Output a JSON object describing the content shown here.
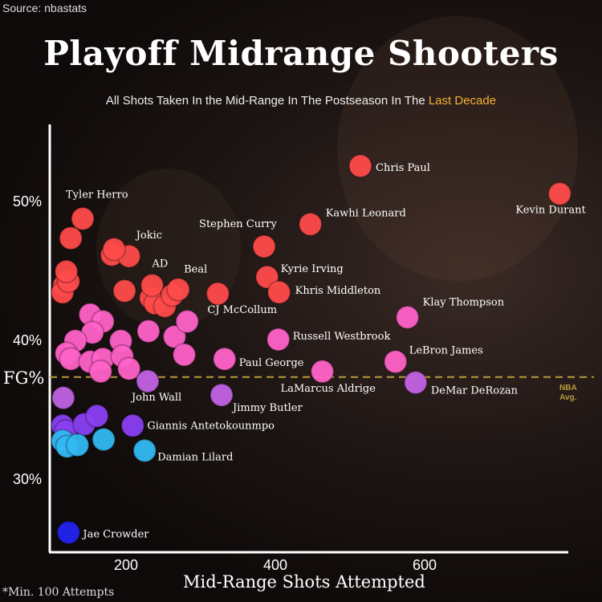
{
  "source": "Source: nbastats",
  "title": "Playoff Midrange Shooters",
  "subtitle_main": "All Shots Taken In the Mid-Range In The Postseason In The ",
  "subtitle_highlight": "Last Decade",
  "footnote": "*Min. 100 Attempts",
  "fg_label": "FG%",
  "avg_label_1": "NBA",
  "avg_label_2": "Avg.",
  "colors": {
    "red": "#ff4b4b",
    "pink": "#ff62c8",
    "lavender": "#c262e4",
    "violet": "#8a40f2",
    "cyan": "#33b9f2",
    "blue": "#2323f0",
    "avg_line": "#b89a3a",
    "highlight": "#f2b132"
  },
  "chart_data": {
    "type": "scatter",
    "title": "Playoff Midrange Shooters",
    "xlabel": "Mid-Range Shots Attempted",
    "ylabel": "FG%",
    "xlim": [
      100,
      800
    ],
    "ylim": [
      25,
      54
    ],
    "x_ticks": [
      {
        "value": 200,
        "label": "200"
      },
      {
        "value": 400,
        "label": "400"
      },
      {
        "value": 600,
        "label": "600"
      }
    ],
    "y_ticks": [
      {
        "value": 50,
        "label": "50%"
      },
      {
        "value": 40,
        "label": "40%"
      },
      {
        "value": 30,
        "label": "30%"
      }
    ],
    "reference_line": {
      "name": "NBA Avg.",
      "value": 37.3
    },
    "points": [
      {
        "x": 514,
        "y": 52.5,
        "group": "red",
        "label": "Chris Paul"
      },
      {
        "x": 781,
        "y": 50.5,
        "group": "red",
        "label": "Kevin Durant"
      },
      {
        "x": 447,
        "y": 48.3,
        "group": "red",
        "label": "Kawhi Leonard"
      },
      {
        "x": 385,
        "y": 46.7,
        "group": "red",
        "label": "Stephen Curry"
      },
      {
        "x": 389,
        "y": 44.5,
        "group": "red",
        "label": "Kyrie Irving"
      },
      {
        "x": 405,
        "y": 43.4,
        "group": "red",
        "label": "Khris Middleton"
      },
      {
        "x": 323,
        "y": 43.3,
        "group": "red",
        "label": "CJ McCollum"
      },
      {
        "x": 142,
        "y": 48.7,
        "group": "red",
        "label": "Tyler Herro"
      },
      {
        "x": 126,
        "y": 47.3,
        "group": "red"
      },
      {
        "x": 181,
        "y": 46.1,
        "group": "red"
      },
      {
        "x": 204,
        "y": 46.0,
        "group": "red",
        "label": "Jokic"
      },
      {
        "x": 184,
        "y": 46.5,
        "group": "red"
      },
      {
        "x": 117,
        "y": 43.9,
        "group": "red"
      },
      {
        "x": 115,
        "y": 43.4,
        "group": "red"
      },
      {
        "x": 123,
        "y": 44.2,
        "group": "red"
      },
      {
        "x": 120,
        "y": 44.9,
        "group": "red"
      },
      {
        "x": 198,
        "y": 43.5,
        "group": "red"
      },
      {
        "x": 233,
        "y": 43.0,
        "group": "red"
      },
      {
        "x": 239,
        "y": 42.6,
        "group": "red"
      },
      {
        "x": 252,
        "y": 42.4,
        "group": "red"
      },
      {
        "x": 235,
        "y": 43.9,
        "group": "red",
        "label": "AD"
      },
      {
        "x": 262,
        "y": 43.2,
        "group": "red"
      },
      {
        "x": 270,
        "y": 43.6,
        "group": "red",
        "label": "Beal"
      },
      {
        "x": 152,
        "y": 41.8,
        "group": "pink"
      },
      {
        "x": 169,
        "y": 41.3,
        "group": "pink"
      },
      {
        "x": 155,
        "y": 40.5,
        "group": "pink"
      },
      {
        "x": 132,
        "y": 39.9,
        "group": "pink"
      },
      {
        "x": 120,
        "y": 39.0,
        "group": "pink"
      },
      {
        "x": 126,
        "y": 38.6,
        "group": "pink"
      },
      {
        "x": 152,
        "y": 38.4,
        "group": "pink"
      },
      {
        "x": 169,
        "y": 38.6,
        "group": "pink"
      },
      {
        "x": 166,
        "y": 37.7,
        "group": "pink"
      },
      {
        "x": 193,
        "y": 39.9,
        "group": "pink"
      },
      {
        "x": 195,
        "y": 38.8,
        "group": "pink"
      },
      {
        "x": 204,
        "y": 37.9,
        "group": "pink"
      },
      {
        "x": 230,
        "y": 40.6,
        "group": "pink"
      },
      {
        "x": 265,
        "y": 40.2,
        "group": "pink"
      },
      {
        "x": 282,
        "y": 41.3,
        "group": "pink"
      },
      {
        "x": 278,
        "y": 38.9,
        "group": "pink"
      },
      {
        "x": 332,
        "y": 38.6,
        "group": "pink",
        "label": "Paul George"
      },
      {
        "x": 404,
        "y": 40.0,
        "group": "pink",
        "label": "Russell Westbrook"
      },
      {
        "x": 577,
        "y": 41.6,
        "group": "pink",
        "label": "Klay Thompson"
      },
      {
        "x": 561,
        "y": 38.4,
        "group": "pink",
        "label": "LeBron James"
      },
      {
        "x": 463,
        "y": 37.7,
        "group": "pink",
        "label": "LaMarcus Aldrige"
      },
      {
        "x": 588,
        "y": 36.9,
        "group": "lavender",
        "label": "DeMar DeRozan"
      },
      {
        "x": 229,
        "y": 37.0,
        "group": "lavender",
        "label": "John Wall"
      },
      {
        "x": 328,
        "y": 36.0,
        "group": "lavender",
        "label": "Jimmy Butler"
      },
      {
        "x": 116,
        "y": 35.8,
        "group": "lavender"
      },
      {
        "x": 115,
        "y": 33.8,
        "group": "violet"
      },
      {
        "x": 119,
        "y": 33.4,
        "group": "violet"
      },
      {
        "x": 144,
        "y": 33.9,
        "group": "violet"
      },
      {
        "x": 161,
        "y": 34.5,
        "group": "violet"
      },
      {
        "x": 209,
        "y": 33.8,
        "group": "violet",
        "label": "Giannis Antetokounmpo"
      },
      {
        "x": 115,
        "y": 32.7,
        "group": "cyan"
      },
      {
        "x": 121,
        "y": 32.3,
        "group": "cyan"
      },
      {
        "x": 135,
        "y": 32.4,
        "group": "cyan"
      },
      {
        "x": 170,
        "y": 32.8,
        "group": "cyan"
      },
      {
        "x": 225,
        "y": 32.0,
        "group": "cyan",
        "label": "Damian Lilard"
      },
      {
        "x": 123,
        "y": 26.1,
        "group": "blue",
        "label": "Jae Crowder"
      }
    ]
  }
}
